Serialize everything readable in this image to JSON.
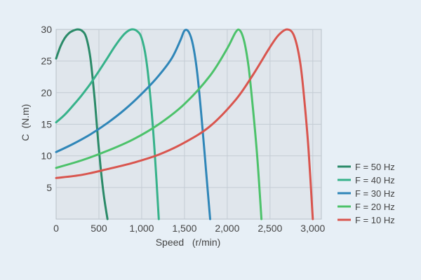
{
  "chart_data": {
    "type": "line",
    "xlabel": "Speed   (r/min)",
    "ylabel": "C  (N.m)",
    "xlim": [
      0,
      3100
    ],
    "ylim": [
      0,
      30
    ],
    "xticks": [
      0,
      500,
      1000,
      1500,
      2000,
      2500,
      3000
    ],
    "xtick_labels": [
      "0",
      "500",
      "1,000",
      "1,500",
      "2,000",
      "2,500",
      "3,000"
    ],
    "yticks": [
      5,
      10,
      15,
      20,
      25,
      30
    ],
    "ytick_labels": [
      "5",
      "10",
      "15",
      "20",
      "25",
      "30"
    ],
    "grid": true,
    "legend_position": "right",
    "series": [
      {
        "name": "F = 50 Hz",
        "color": "#2a8a68",
        "points": [
          [
            0,
            25.4
          ],
          [
            50,
            27.3
          ],
          [
            100,
            28.6
          ],
          [
            150,
            29.4
          ],
          [
            200,
            29.8
          ],
          [
            250,
            30.0
          ],
          [
            300,
            29.8
          ],
          [
            350,
            28.8
          ],
          [
            400,
            25.5
          ],
          [
            450,
            19.0
          ],
          [
            500,
            11.0
          ],
          [
            550,
            4.5
          ],
          [
            600,
            0
          ]
        ]
      },
      {
        "name": "F = 40 Hz",
        "color": "#36b28a",
        "points": [
          [
            0,
            15.3
          ],
          [
            100,
            16.5
          ],
          [
            200,
            18.0
          ],
          [
            300,
            19.6
          ],
          [
            400,
            21.4
          ],
          [
            500,
            23.4
          ],
          [
            600,
            25.5
          ],
          [
            700,
            27.6
          ],
          [
            800,
            29.3
          ],
          [
            880,
            30.0
          ],
          [
            950,
            29.7
          ],
          [
            1000,
            28.6
          ],
          [
            1050,
            25.5
          ],
          [
            1100,
            19.5
          ],
          [
            1150,
            11.0
          ],
          [
            1200,
            0
          ]
        ]
      },
      {
        "name": "F = 30 Hz",
        "color": "#2f86b8",
        "points": [
          [
            0,
            10.6
          ],
          [
            200,
            11.9
          ],
          [
            400,
            13.4
          ],
          [
            600,
            15.2
          ],
          [
            800,
            17.3
          ],
          [
            1000,
            19.8
          ],
          [
            1200,
            22.7
          ],
          [
            1350,
            25.4
          ],
          [
            1450,
            28.2
          ],
          [
            1500,
            29.8
          ],
          [
            1550,
            29.6
          ],
          [
            1600,
            27.5
          ],
          [
            1650,
            23.0
          ],
          [
            1700,
            16.0
          ],
          [
            1750,
            8.0
          ],
          [
            1800,
            0
          ]
        ]
      },
      {
        "name": "F = 20 Hz",
        "color": "#4cc26a",
        "points": [
          [
            0,
            8.1
          ],
          [
            300,
            9.3
          ],
          [
            600,
            10.8
          ],
          [
            900,
            12.6
          ],
          [
            1200,
            15.0
          ],
          [
            1500,
            18.2
          ],
          [
            1800,
            22.7
          ],
          [
            2000,
            27.0
          ],
          [
            2100,
            29.6
          ],
          [
            2150,
            29.8
          ],
          [
            2200,
            28.0
          ],
          [
            2250,
            24.0
          ],
          [
            2300,
            17.5
          ],
          [
            2350,
            10.0
          ],
          [
            2400,
            0
          ]
        ]
      },
      {
        "name": "F = 10 Hz",
        "color": "#d9554e",
        "points": [
          [
            0,
            6.5
          ],
          [
            300,
            7.0
          ],
          [
            600,
            7.9
          ],
          [
            900,
            8.9
          ],
          [
            1200,
            10.2
          ],
          [
            1500,
            12.1
          ],
          [
            1800,
            14.7
          ],
          [
            2100,
            18.9
          ],
          [
            2300,
            22.8
          ],
          [
            2500,
            27.2
          ],
          [
            2600,
            29.1
          ],
          [
            2700,
            30.0
          ],
          [
            2780,
            29.0
          ],
          [
            2850,
            25.0
          ],
          [
            2900,
            19.0
          ],
          [
            2950,
            11.0
          ],
          [
            3000,
            0
          ]
        ]
      }
    ]
  }
}
